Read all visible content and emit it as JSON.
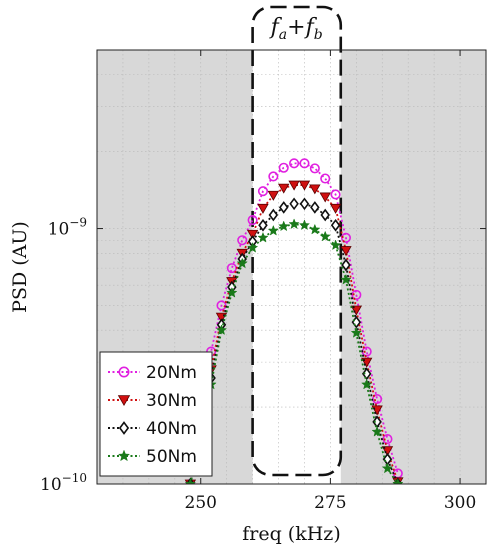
{
  "chart_data": {
    "type": "line",
    "xlabel": "freq (kHz)",
    "ylabel": "PSD (AU)",
    "yscale": "log",
    "xlim": [
      230,
      305
    ],
    "ylim": [
      1e-10,
      5e-09
    ],
    "xticks": [
      {
        "value": 250,
        "label": "250"
      },
      {
        "value": 275,
        "label": "275"
      },
      {
        "value": 300,
        "label": "300"
      }
    ],
    "yticks": [
      {
        "value": 1e-10,
        "base": "10",
        "exp": "−10"
      },
      {
        "value": 1e-09,
        "base": "10",
        "exp": "−9"
      }
    ],
    "band": {
      "x_start": 260,
      "x_end": 277,
      "label_main": "f",
      "label_sub_a": "a",
      "label_plus": "+",
      "label_sub_b": "b"
    },
    "shaded_regions": [
      [
        230,
        260
      ],
      [
        277,
        305
      ]
    ],
    "x": [
      248,
      250,
      252,
      254,
      256,
      258,
      260,
      262,
      264,
      266,
      268,
      270,
      272,
      274,
      276,
      278,
      280,
      282,
      284,
      286,
      288
    ],
    "series": [
      {
        "name": "20Nm",
        "color": "#e020e0",
        "marker": "circle",
        "values": [
          1e-10,
          1.85e-10,
          3.3e-10,
          5e-10,
          7e-10,
          9e-10,
          1.08e-09,
          1.4e-09,
          1.6e-09,
          1.73e-09,
          1.8e-09,
          1.8e-09,
          1.72e-09,
          1.57e-09,
          1.36e-09,
          9.2e-10,
          5.5e-10,
          3.3e-10,
          2.15e-10,
          1.5e-10,
          1.1e-10
        ]
      },
      {
        "name": "30Nm",
        "color": "#d01010",
        "marker": "triangle-down",
        "values": [
          1e-10,
          1.7e-10,
          2.8e-10,
          4.5e-10,
          6.2e-10,
          8e-10,
          9.5e-10,
          1.2e-09,
          1.35e-09,
          1.44e-09,
          1.48e-09,
          1.48e-09,
          1.43e-09,
          1.33e-09,
          1.2e-09,
          8.2e-10,
          4.8e-10,
          3e-10,
          1.95e-10,
          1.35e-10,
          1.02e-10
        ]
      },
      {
        "name": "40Nm",
        "color": "#111111",
        "marker": "diamond",
        "values": [
          1e-10,
          1.6e-10,
          2.6e-10,
          4.2e-10,
          5.9e-10,
          7.6e-10,
          8.9e-10,
          1.03e-09,
          1.13e-09,
          1.21e-09,
          1.25e-09,
          1.25e-09,
          1.21e-09,
          1.13e-09,
          1.03e-09,
          7.2e-10,
          4.3e-10,
          2.7e-10,
          1.75e-10,
          1.25e-10,
          1e-10
        ]
      },
      {
        "name": "50Nm",
        "color": "#1a7a1a",
        "marker": "star",
        "values": [
          1e-10,
          1.5e-10,
          2.45e-10,
          4e-10,
          5.6e-10,
          7.3e-10,
          8.4e-10,
          9.2e-10,
          9.8e-10,
          1.02e-09,
          1.04e-09,
          1.03e-09,
          9.9e-10,
          9.3e-10,
          8.6e-10,
          6.3e-10,
          3.9e-10,
          2.45e-10,
          1.6e-10,
          1.15e-10,
          1e-10
        ]
      }
    ],
    "legend_position": "bottom-left",
    "colors": {
      "shade": "#d8d8d8",
      "grid": "#b8b8b8",
      "band_border": "#111111"
    }
  }
}
